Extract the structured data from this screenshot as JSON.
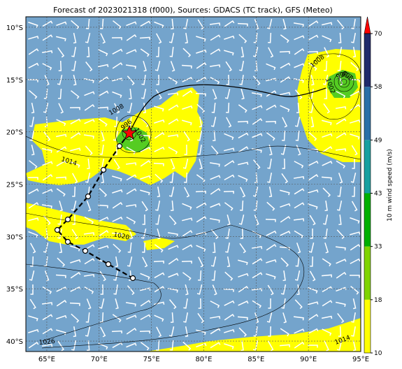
{
  "map": {
    "title": "Forecast of 2023021318 (f000), Sources: GDACS (TC track), GFS (Meteo)",
    "xlim": [
      63,
      95
    ],
    "ylim": [
      -41,
      -9
    ],
    "xticks": [
      {
        "value": 65,
        "label": "65°E"
      },
      {
        "value": 70,
        "label": "70°E"
      },
      {
        "value": 75,
        "label": "75°E"
      },
      {
        "value": 80,
        "label": "80°E"
      },
      {
        "value": 85,
        "label": "85°E"
      },
      {
        "value": 90,
        "label": "90°E"
      },
      {
        "value": 95,
        "label": "95°E"
      }
    ],
    "yticks": [
      {
        "value": -10,
        "label": "10°S"
      },
      {
        "value": -15,
        "label": "15°S"
      },
      {
        "value": -20,
        "label": "20°S"
      },
      {
        "value": -25,
        "label": "25°S"
      },
      {
        "value": -30,
        "label": "30°S"
      },
      {
        "value": -35,
        "label": "35°S"
      },
      {
        "value": -40,
        "label": "40°S"
      }
    ],
    "colorbar": {
      "label": "10 m wind speed (m/s)",
      "ticks": [
        10,
        18,
        33,
        43,
        49,
        58,
        70
      ],
      "colors": [
        "#ffff00",
        "#80d400",
        "#00b000",
        "#17a0a0",
        "#2a6fa8",
        "#1f2a6b"
      ],
      "extend_color": "#ff0000"
    },
    "contour_labels": [
      "1008",
      "1014",
      "1020",
      "1026",
      "1014",
      "1008",
      "1002",
      "996",
      "1002",
      "990",
      "996"
    ]
  }
}
